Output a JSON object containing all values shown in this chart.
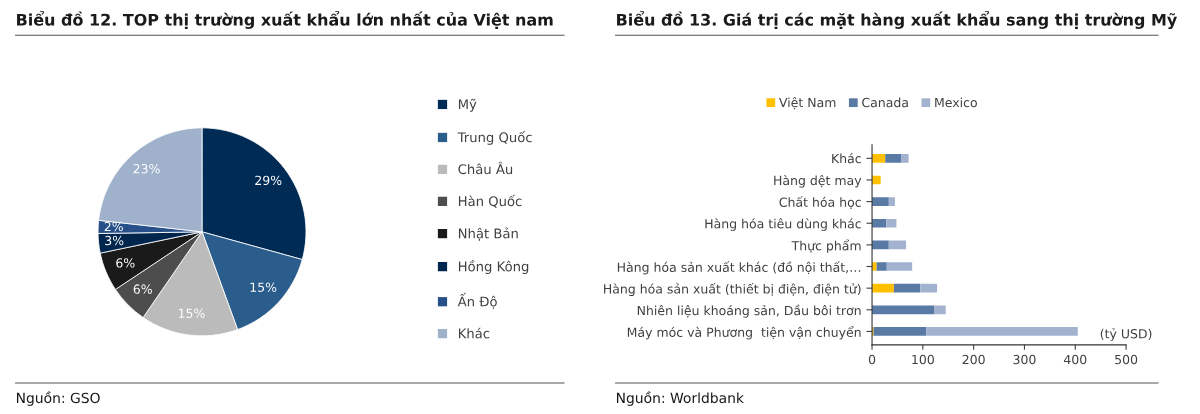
{
  "chart_data": [
    {
      "type": "pie",
      "title": "Biểu đồ 12. TOP thị trường xuất khẩu lớn nhất của Việt nam",
      "categories": [
        "Mỹ",
        "Trung Quốc",
        "Châu Âu",
        "Hàn Quốc",
        "Nhật Bản",
        "Hồng Kông",
        "Ấn Độ",
        "Khác"
      ],
      "values": [
        29,
        15,
        15,
        6,
        6,
        3,
        2,
        23
      ],
      "colors": [
        "#002b55",
        "#2a5d8c",
        "#bbbbbb",
        "#4d4d4d",
        "#1a1a1a",
        "#00264d",
        "#27508a",
        "#9fb1cb"
      ],
      "value_labels": [
        "29%",
        "15%",
        "15%",
        "6%",
        "6%",
        "3%",
        "2%",
        "23%"
      ],
      "legend": "right",
      "annotations": [
        "Nguồn: GSO"
      ]
    },
    {
      "type": "bar",
      "title": "Biểu đồ 13. Giá trị các mặt hàng xuất khẩu sang thị trường Mỹ",
      "orientation": "horizontal",
      "stacked": true,
      "categories": [
        "Khác",
        "Hàng dệt may",
        "Chất hóa học",
        "Hàng hóa tiêu dùng khác",
        "Thực phẩm",
        "Hàng hóa sản xuất khác (đồ nội thất,…",
        "Hàng hóa sản xuất (thiết bị điện, điện tử)",
        "Nhiên liệu khoáng sản, Dầu bôi trơn",
        "Máy móc và Phương  tiện vận chuyển"
      ],
      "series": [
        {
          "name": "Việt Nam",
          "color": "#ffc000",
          "values": [
            26,
            17,
            0,
            0,
            0,
            9,
            43,
            0,
            3
          ]
        },
        {
          "name": "Canada",
          "color": "#5a7aa6",
          "values": [
            32,
            0,
            33,
            28,
            33,
            20,
            52,
            123,
            104
          ]
        },
        {
          "name": "Mexico",
          "color": "#a3b3cf",
          "values": [
            14,
            0,
            12,
            20,
            34,
            50,
            33,
            22,
            298
          ]
        }
      ],
      "xlim": [
        0,
        500
      ],
      "xticks": [
        0,
        100,
        200,
        300,
        400,
        500
      ],
      "xlabel": "(tỷ USD)",
      "grid": false,
      "legend": "top",
      "annotations": [
        "Nguồn: Worldbank"
      ]
    }
  ]
}
